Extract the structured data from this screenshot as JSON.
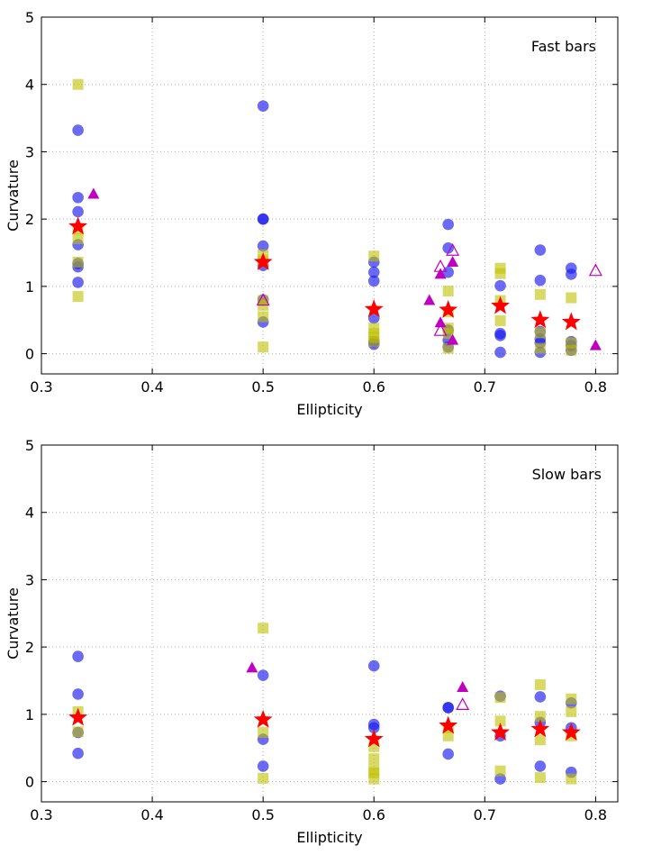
{
  "chart_data": [
    {
      "type": "scatter",
      "title": "",
      "annotation": "Fast bars",
      "xlabel": "Ellipticity",
      "ylabel": "Curvature",
      "xlim": [
        0.3,
        0.82
      ],
      "ylim": [
        -0.3,
        5
      ],
      "xticks": [
        0.3,
        0.4,
        0.5,
        0.6,
        0.7,
        0.8
      ],
      "xtick_labels": [
        "0.3",
        "0.4",
        "0.5",
        "0.6",
        "0.7",
        "0.8"
      ],
      "yticks": [
        0,
        1,
        2,
        3,
        4,
        5
      ],
      "ytick_labels": [
        "0",
        "1",
        "2",
        "3",
        "4",
        "5"
      ],
      "grid": true,
      "series": [
        {
          "name": "blue circles",
          "marker": "circle",
          "color": "#1a1aeb",
          "alpha": 0.65,
          "points": [
            [
              0.333,
              3.32
            ],
            [
              0.333,
              2.32
            ],
            [
              0.333,
              2.11
            ],
            [
              0.333,
              1.62
            ],
            [
              0.333,
              1.34
            ],
            [
              0.333,
              1.29
            ],
            [
              0.333,
              1.06
            ],
            [
              0.5,
              3.68
            ],
            [
              0.5,
              2.0
            ],
            [
              0.5,
              2.0
            ],
            [
              0.5,
              1.6
            ],
            [
              0.5,
              1.31
            ],
            [
              0.5,
              0.8
            ],
            [
              0.5,
              0.47
            ],
            [
              0.6,
              1.36
            ],
            [
              0.6,
              1.21
            ],
            [
              0.6,
              1.08
            ],
            [
              0.6,
              0.53
            ],
            [
              0.6,
              0.18
            ],
            [
              0.6,
              0.14
            ],
            [
              0.667,
              1.92
            ],
            [
              0.667,
              1.57
            ],
            [
              0.667,
              1.21
            ],
            [
              0.667,
              0.35
            ],
            [
              0.667,
              0.2
            ],
            [
              0.667,
              0.1
            ],
            [
              0.714,
              1.01
            ],
            [
              0.714,
              0.3
            ],
            [
              0.714,
              0.27
            ],
            [
              0.714,
              0.02
            ],
            [
              0.75,
              1.54
            ],
            [
              0.75,
              1.09
            ],
            [
              0.75,
              0.33
            ],
            [
              0.75,
              0.22
            ],
            [
              0.75,
              0.16
            ],
            [
              0.75,
              0.02
            ],
            [
              0.778,
              1.27
            ],
            [
              0.778,
              1.18
            ],
            [
              0.778,
              0.18
            ],
            [
              0.778,
              0.12
            ],
            [
              0.778,
              0.05
            ]
          ]
        },
        {
          "name": "yellow squares",
          "marker": "square",
          "color": "#bfbf00",
          "alpha": 0.6,
          "points": [
            [
              0.333,
              4.0
            ],
            [
              0.333,
              1.85
            ],
            [
              0.333,
              1.71
            ],
            [
              0.333,
              1.36
            ],
            [
              0.333,
              0.85
            ],
            [
              0.5,
              1.47
            ],
            [
              0.5,
              1.38
            ],
            [
              0.5,
              0.79
            ],
            [
              0.5,
              0.72
            ],
            [
              0.5,
              0.55
            ],
            [
              0.5,
              0.1
            ],
            [
              0.6,
              1.45
            ],
            [
              0.6,
              0.38
            ],
            [
              0.6,
              0.3
            ],
            [
              0.6,
              0.24
            ],
            [
              0.6,
              0.18
            ],
            [
              0.667,
              0.93
            ],
            [
              0.667,
              0.62
            ],
            [
              0.667,
              0.38
            ],
            [
              0.667,
              0.3
            ],
            [
              0.667,
              0.08
            ],
            [
              0.714,
              1.27
            ],
            [
              0.714,
              1.19
            ],
            [
              0.714,
              0.79
            ],
            [
              0.714,
              0.49
            ],
            [
              0.75,
              0.88
            ],
            [
              0.75,
              0.31
            ],
            [
              0.75,
              0.08
            ],
            [
              0.778,
              0.83
            ],
            [
              0.778,
              0.16
            ],
            [
              0.778,
              0.05
            ]
          ]
        },
        {
          "name": "magenta filled triangles",
          "marker": "triangle",
          "color": "#c000c0",
          "alpha": 1,
          "points": [
            [
              0.347,
              2.37
            ],
            [
              0.65,
              0.79
            ],
            [
              0.66,
              0.46
            ],
            [
              0.66,
              1.18
            ],
            [
              0.671,
              1.36
            ],
            [
              0.671,
              0.2
            ],
            [
              0.8,
              0.12
            ]
          ]
        },
        {
          "name": "magenta open triangles",
          "marker": "triangle-open",
          "color": "#c000c0",
          "alpha": 1,
          "points": [
            [
              0.5,
              0.79
            ],
            [
              0.66,
              1.29
            ],
            [
              0.66,
              0.34
            ],
            [
              0.671,
              1.53
            ],
            [
              0.8,
              1.23
            ]
          ]
        },
        {
          "name": "red stars",
          "marker": "star",
          "color": "#ff0000",
          "alpha": 1,
          "points": [
            [
              0.333,
              1.89
            ],
            [
              0.5,
              1.36
            ],
            [
              0.6,
              0.66
            ],
            [
              0.667,
              0.65
            ],
            [
              0.714,
              0.71
            ],
            [
              0.75,
              0.5
            ],
            [
              0.778,
              0.47
            ]
          ]
        }
      ]
    },
    {
      "type": "scatter",
      "title": "",
      "annotation": "Slow bars",
      "xlabel": "Ellipticity",
      "ylabel": "Curvature",
      "xlim": [
        0.3,
        0.82
      ],
      "ylim": [
        -0.3,
        5
      ],
      "xticks": [
        0.3,
        0.4,
        0.5,
        0.6,
        0.7,
        0.8
      ],
      "xtick_labels": [
        "0.3",
        "0.4",
        "0.5",
        "0.6",
        "0.7",
        "0.8"
      ],
      "yticks": [
        0,
        1,
        2,
        3,
        4,
        5
      ],
      "ytick_labels": [
        "0",
        "1",
        "2",
        "3",
        "4",
        "5"
      ],
      "grid": true,
      "series": [
        {
          "name": "blue circles",
          "marker": "circle",
          "color": "#1a1aeb",
          "alpha": 0.65,
          "points": [
            [
              0.333,
              1.86
            ],
            [
              0.333,
              1.3
            ],
            [
              0.333,
              0.73
            ],
            [
              0.333,
              0.42
            ],
            [
              0.5,
              1.58
            ],
            [
              0.5,
              0.63
            ],
            [
              0.5,
              0.23
            ],
            [
              0.6,
              1.72
            ],
            [
              0.6,
              0.85
            ],
            [
              0.6,
              0.8
            ],
            [
              0.667,
              1.1
            ],
            [
              0.667,
              1.1
            ],
            [
              0.667,
              0.41
            ],
            [
              0.714,
              1.27
            ],
            [
              0.714,
              0.68
            ],
            [
              0.714,
              0.04
            ],
            [
              0.75,
              1.26
            ],
            [
              0.75,
              0.88
            ],
            [
              0.75,
              0.23
            ],
            [
              0.778,
              1.17
            ],
            [
              0.778,
              0.8
            ],
            [
              0.778,
              0.14
            ]
          ]
        },
        {
          "name": "yellow squares",
          "marker": "square",
          "color": "#bfbf00",
          "alpha": 0.6,
          "points": [
            [
              0.333,
              1.04
            ],
            [
              0.333,
              0.74
            ],
            [
              0.5,
              2.28
            ],
            [
              0.5,
              0.73
            ],
            [
              0.5,
              0.05
            ],
            [
              0.6,
              0.52
            ],
            [
              0.6,
              0.34
            ],
            [
              0.6,
              0.18
            ],
            [
              0.6,
              0.13
            ],
            [
              0.6,
              0.04
            ],
            [
              0.667,
              0.8
            ],
            [
              0.667,
              0.68
            ],
            [
              0.714,
              1.25
            ],
            [
              0.714,
              0.9
            ],
            [
              0.714,
              0.16
            ],
            [
              0.75,
              1.44
            ],
            [
              0.75,
              0.97
            ],
            [
              0.75,
              0.62
            ],
            [
              0.75,
              0.06
            ],
            [
              0.778,
              1.23
            ],
            [
              0.778,
              1.04
            ],
            [
              0.778,
              0.68
            ],
            [
              0.778,
              0.04
            ]
          ]
        },
        {
          "name": "magenta filled triangles",
          "marker": "triangle",
          "color": "#c000c0",
          "alpha": 1,
          "points": [
            [
              0.49,
              1.69
            ],
            [
              0.68,
              1.4
            ]
          ]
        },
        {
          "name": "magenta open triangles",
          "marker": "triangle-open",
          "color": "#c000c0",
          "alpha": 1,
          "points": [
            [
              0.68,
              1.14
            ]
          ]
        },
        {
          "name": "red stars",
          "marker": "star",
          "color": "#ff0000",
          "alpha": 1,
          "points": [
            [
              0.333,
              0.95
            ],
            [
              0.5,
              0.92
            ],
            [
              0.6,
              0.63
            ],
            [
              0.667,
              0.83
            ],
            [
              0.714,
              0.73
            ],
            [
              0.75,
              0.78
            ],
            [
              0.778,
              0.73
            ]
          ]
        }
      ]
    }
  ]
}
